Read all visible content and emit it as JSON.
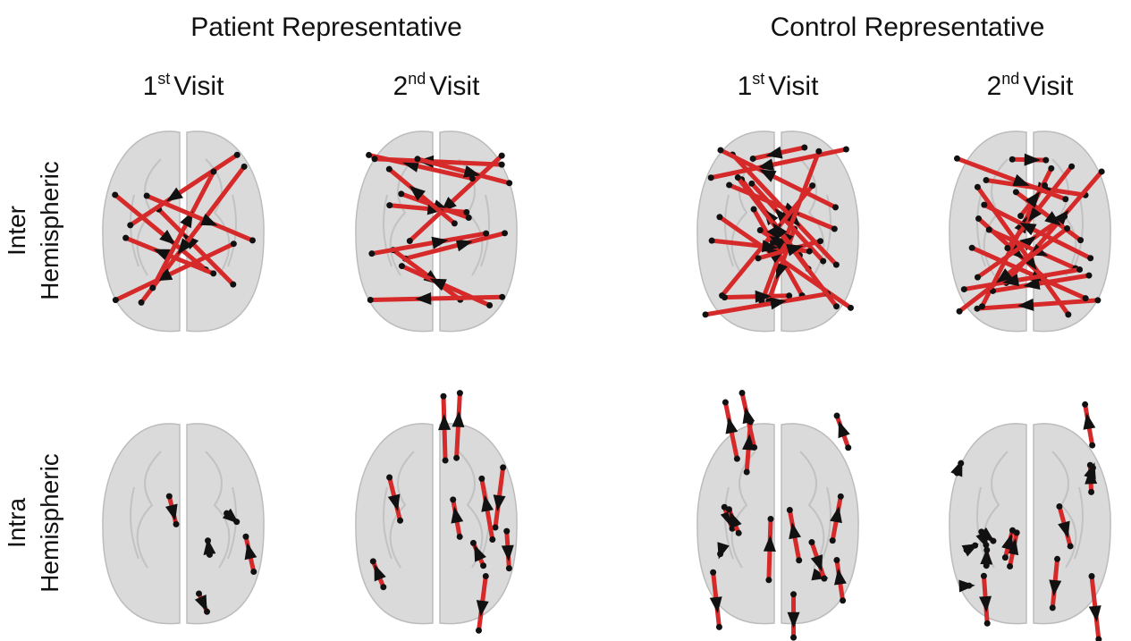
{
  "groups": [
    {
      "title": "Patient Representative",
      "visits": [
        {
          "number": "1",
          "suffix": "st",
          "label": "Visit"
        },
        {
          "number": "2",
          "suffix": "nd",
          "label": "Visit"
        }
      ]
    },
    {
      "title": "Control Representative",
      "visits": [
        {
          "number": "1",
          "suffix": "st",
          "label": "Visit"
        },
        {
          "number": "2",
          "suffix": "nd",
          "label": "Visit"
        }
      ]
    }
  ],
  "rows": [
    {
      "lines": [
        "Inter",
        "Hemispheric"
      ]
    },
    {
      "lines": [
        "Intra",
        "Hemispheric"
      ]
    }
  ]
}
